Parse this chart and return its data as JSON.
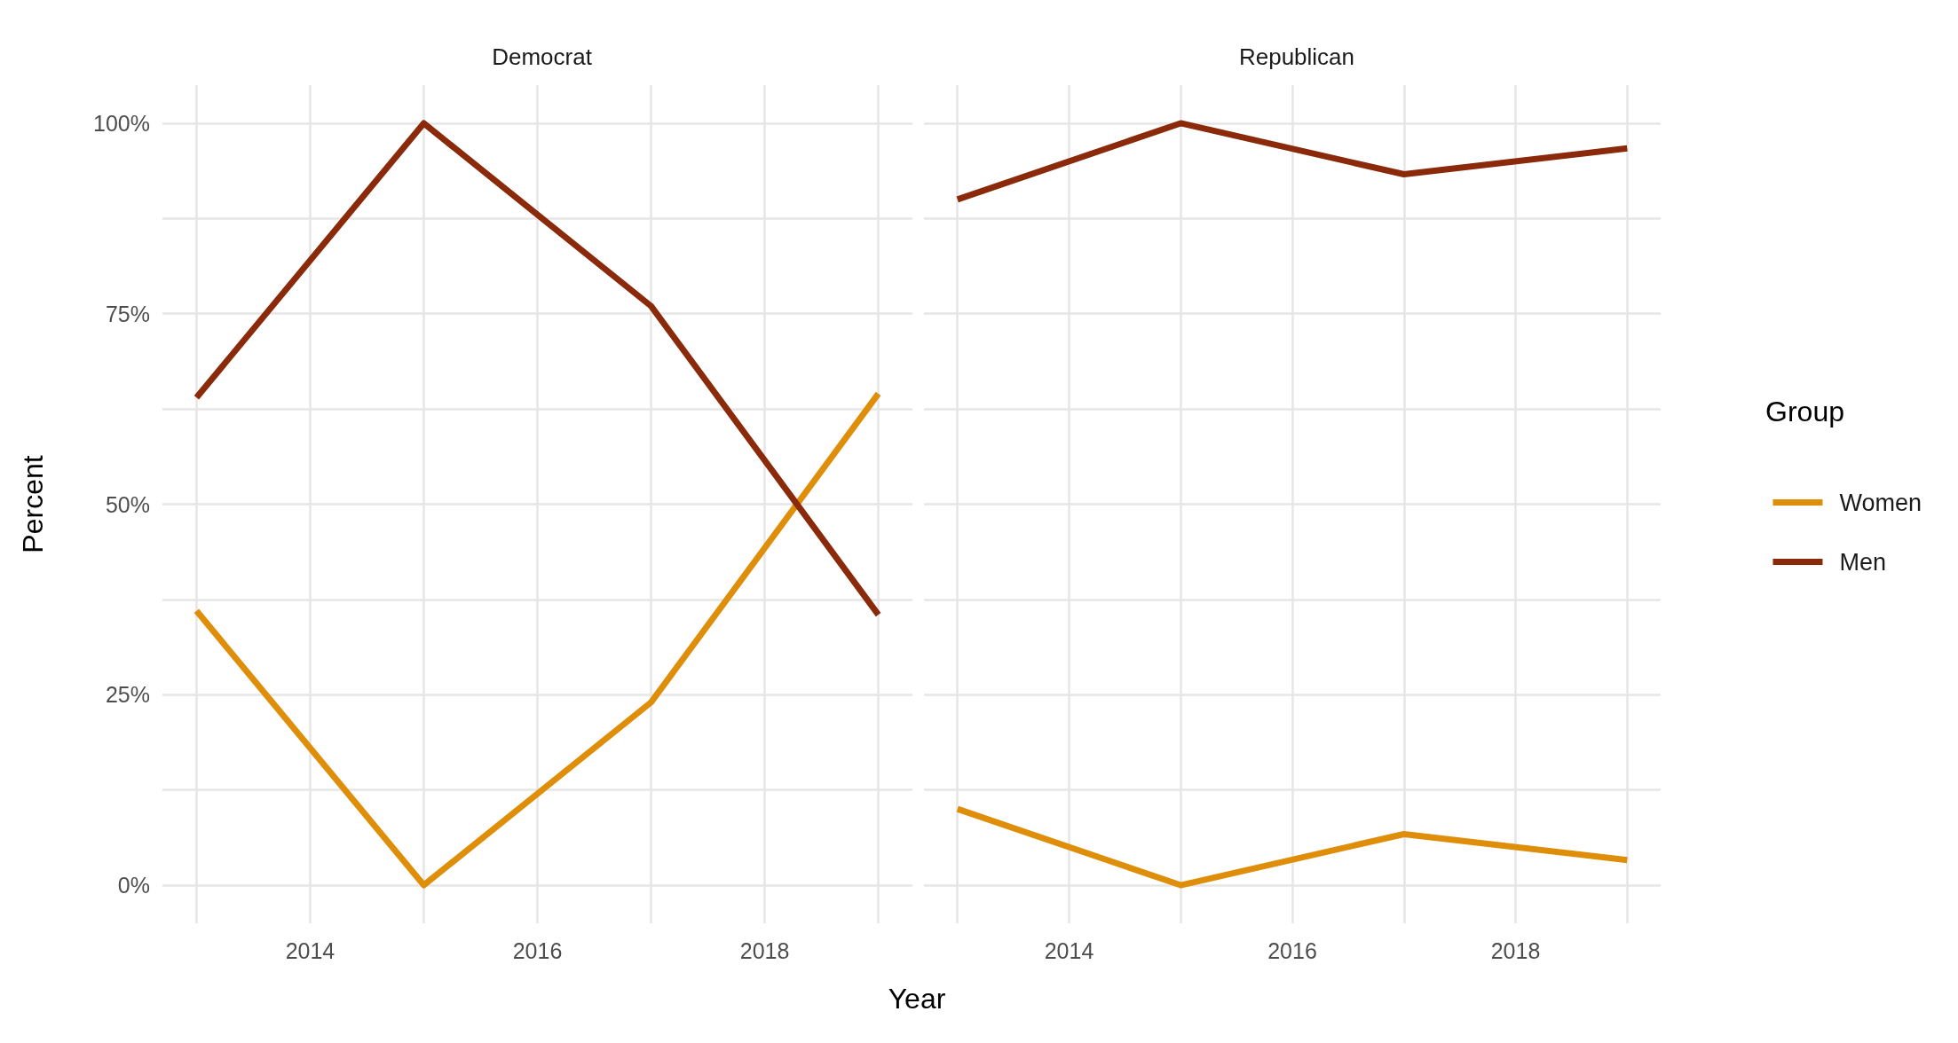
{
  "chart_data": [
    {
      "type": "line",
      "title": "Democrat",
      "xlabel": "Year",
      "ylabel": "Percent",
      "x": [
        2013,
        2015,
        2017,
        2019
      ],
      "series": [
        {
          "color": "#df8e0a",
          "values": [
            36,
            0,
            24,
            64.5
          ]
        },
        {
          "color": "#8a2a0a",
          "values": [
            64,
            100,
            76,
            35.5
          ]
        }
      ],
      "xlim": [
        2012.7,
        2019.3
      ],
      "xticks": [
        {
          "value": 2013,
          "label": null
        },
        2014,
        {
          "value": 2015,
          "label": null
        },
        2016,
        {
          "value": 2017,
          "label": null
        },
        2018,
        {
          "value": 2019,
          "label": null
        }
      ],
      "ylim": [
        -5,
        105
      ],
      "yticks": [
        {
          "value": 0,
          "label": "0%"
        },
        {
          "value": 12.5,
          "label": null
        },
        {
          "value": 25,
          "label": "25%"
        },
        {
          "value": 37.5,
          "label": null
        },
        {
          "value": 50,
          "label": "50%"
        },
        {
          "value": 62.5,
          "label": null
        },
        {
          "value": 75,
          "label": "75%"
        },
        {
          "value": 87.5,
          "label": null
        },
        {
          "value": 100,
          "label": "100%"
        }
      ],
      "grid": true,
      "marker": "none",
      "line_style": "solid"
    },
    {
      "type": "line",
      "title": "Republican",
      "legend_title": "Group",
      "x": [
        2013,
        2015,
        2017,
        2019
      ],
      "series": [
        {
          "name": "Women",
          "color": "#df8e0a",
          "values": [
            10,
            0,
            6.7,
            3.3
          ]
        },
        {
          "name": "Men",
          "color": "#8a2a0a",
          "values": [
            90,
            100,
            93.3,
            96.7
          ]
        }
      ],
      "xlim": [
        2012.7,
        2019.3
      ],
      "xticks": [
        {
          "value": 2013,
          "label": null
        },
        2014,
        {
          "value": 2015,
          "label": null
        },
        2016,
        {
          "value": 2017,
          "label": null
        },
        2018,
        {
          "value": 2019,
          "label": null
        }
      ],
      "ylim": [
        -5,
        105
      ],
      "yticks": [
        {
          "value": 0,
          "label": null
        },
        {
          "value": 12.5,
          "label": null
        },
        {
          "value": 25,
          "label": null
        },
        {
          "value": 37.5,
          "label": null
        },
        {
          "value": 50,
          "label": null
        },
        {
          "value": 62.5,
          "label": null
        },
        {
          "value": 75,
          "label": null
        },
        {
          "value": 87.5,
          "label": null
        },
        {
          "value": 100,
          "label": null
        }
      ],
      "grid": true,
      "marker": "none",
      "line_style": "solid",
      "legend": "right",
      "tick_labels": "x"
    }
  ]
}
